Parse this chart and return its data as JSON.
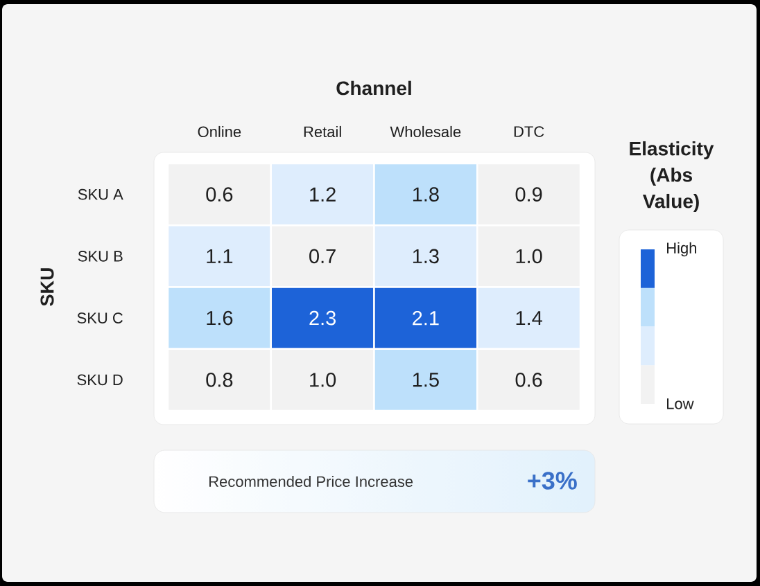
{
  "chart_data": {
    "type": "heatmap",
    "xlabel": "Channel",
    "ylabel": "SKU",
    "clabel": "Elasticity (Abs Value)",
    "categories": [
      "Online",
      "Retail",
      "Wholesale",
      "DTC"
    ],
    "y_categories": [
      "SKU A",
      "SKU B",
      "SKU C",
      "SKU D"
    ],
    "cells": [
      [
        0.6,
        1.2,
        1.8,
        0.9
      ],
      [
        1.1,
        0.7,
        1.3,
        1.0
      ],
      [
        1.6,
        2.3,
        2.1,
        1.4
      ],
      [
        0.8,
        1.0,
        1.5,
        0.6
      ]
    ],
    "cell_labels": [
      [
        "0.6",
        "1.2",
        "1.8",
        "0.9"
      ],
      [
        "1.1",
        "0.7",
        "1.3",
        "1.0"
      ],
      [
        "1.6",
        "2.3",
        "2.1",
        "1.4"
      ],
      [
        "0.8",
        "1.0",
        "1.5",
        "0.6"
      ]
    ],
    "clim": [
      0.6,
      2.3
    ],
    "cticks": [
      {
        "value": 2.3,
        "label": "High"
      },
      {
        "value": 0.6,
        "label": "Low"
      }
    ],
    "annotations": [
      "Recommended Price Increase",
      "+3%"
    ]
  }
}
